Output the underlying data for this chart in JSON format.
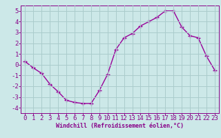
{
  "x": [
    0,
    1,
    2,
    3,
    4,
    5,
    6,
    7,
    8,
    9,
    10,
    11,
    12,
    13,
    14,
    15,
    16,
    17,
    18,
    19,
    20,
    21,
    22,
    23
  ],
  "y": [
    0.3,
    -0.3,
    -0.8,
    -1.8,
    -2.5,
    -3.3,
    -3.5,
    -3.6,
    -3.6,
    -2.4,
    -0.9,
    1.4,
    2.5,
    2.9,
    3.6,
    4.0,
    4.4,
    5.0,
    5.0,
    3.5,
    2.7,
    2.5,
    0.8,
    -0.5
  ],
  "line_color": "#990099",
  "marker": "+",
  "marker_size": 4,
  "bg_color": "#cce8e8",
  "grid_color": "#aacccc",
  "xlabel": "Windchill (Refroidissement éolien,°C)",
  "ylim": [
    -4.5,
    5.5
  ],
  "xlim": [
    -0.5,
    23.5
  ],
  "xticks": [
    0,
    1,
    2,
    3,
    4,
    5,
    6,
    7,
    8,
    9,
    10,
    11,
    12,
    13,
    14,
    15,
    16,
    17,
    18,
    19,
    20,
    21,
    22,
    23
  ],
  "yticks": [
    -4,
    -3,
    -2,
    -1,
    0,
    1,
    2,
    3,
    4,
    5
  ],
  "tick_color": "#880088",
  "label_fontsize": 6,
  "tick_fontsize": 6.5
}
